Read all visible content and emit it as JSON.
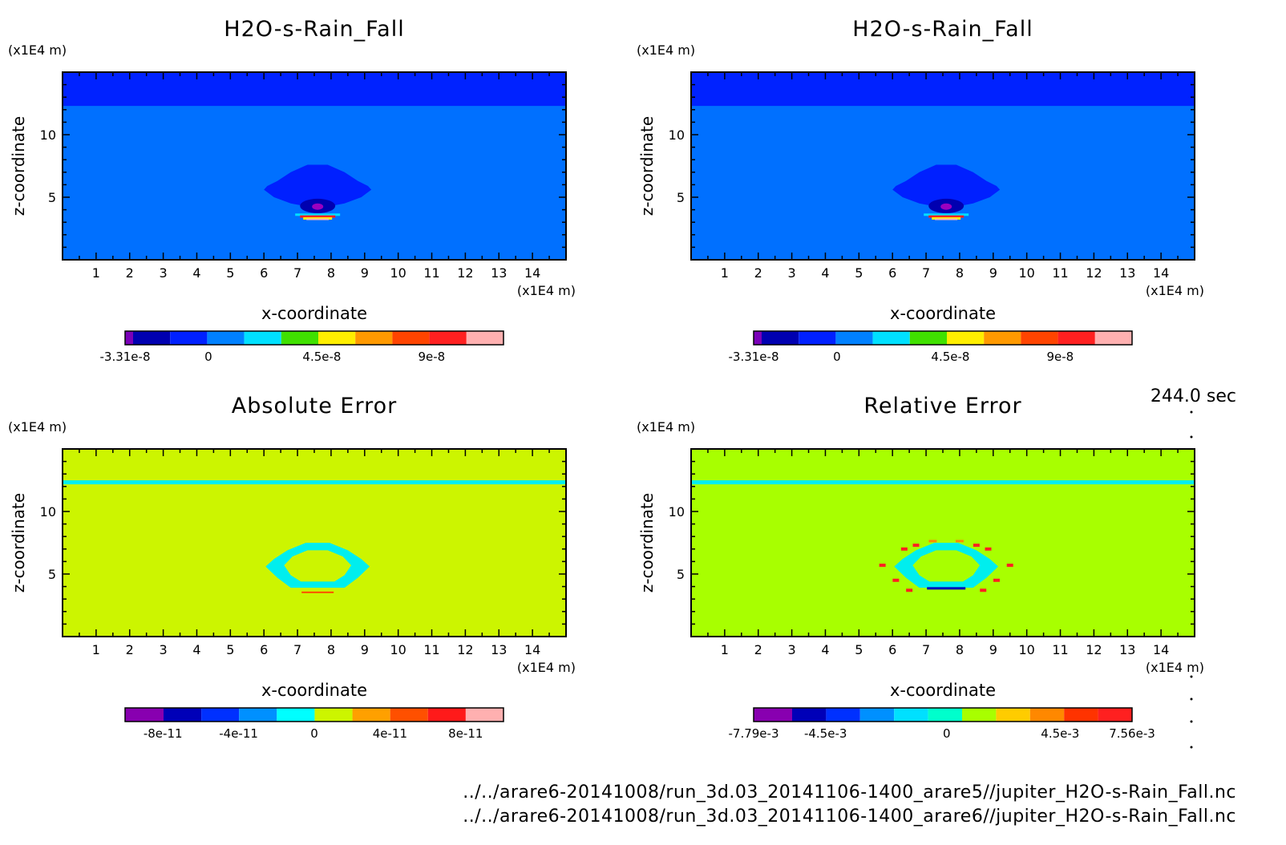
{
  "time_label": "244.0 sec",
  "files": [
    "../../arare6-20141008/run_3d.03_20141106-1400_arare5//jupiter_H2O-s-Rain_Fall.nc",
    "../../arare6-20141008/run_3d.03_20141106-1400_arare6//jupiter_H2O-s-Rain_Fall.nc"
  ],
  "chart_data": [
    {
      "type": "heatmap",
      "title": "H2O-s-Rain_Fall",
      "xlabel": "x-coordinate",
      "ylabel": "z-coordinate",
      "x_unit": "(x1E4 m)",
      "y_unit": "(x1E4 m)",
      "xlim": [
        0,
        15
      ],
      "ylim": [
        0,
        15
      ],
      "xticks": [
        "1",
        "2",
        "3",
        "4",
        "5",
        "6",
        "7",
        "8",
        "9",
        "10",
        "11",
        "12",
        "13",
        "14"
      ],
      "yticks": [
        "5",
        "10"
      ],
      "background_color": "#0070ff",
      "top_band_color": "#0022ff",
      "feature": "rain shaft near x=7.5, z=3-8",
      "colorbar": {
        "colors": [
          "#7a00b8",
          "#0000b0",
          "#0020ff",
          "#0080ff",
          "#00e0ff",
          "#40e000",
          "#ffee00",
          "#ff9900",
          "#ff4400",
          "#ff2020",
          "#ffb0b0"
        ],
        "labels": [
          "-3.31e-8",
          "0",
          "4.5e-8",
          "9e-8"
        ]
      }
    },
    {
      "type": "heatmap",
      "title": "H2O-s-Rain_Fall",
      "xlabel": "x-coordinate",
      "ylabel": "z-coordinate",
      "x_unit": "(x1E4 m)",
      "y_unit": "(x1E4 m)",
      "xlim": [
        0,
        15
      ],
      "ylim": [
        0,
        15
      ],
      "xticks": [
        "1",
        "2",
        "3",
        "4",
        "5",
        "6",
        "7",
        "8",
        "9",
        "10",
        "11",
        "12",
        "13",
        "14"
      ],
      "yticks": [
        "5",
        "10"
      ],
      "background_color": "#0070ff",
      "top_band_color": "#0022ff",
      "feature": "rain shaft near x=7.5, z=3-8",
      "colorbar": {
        "colors": [
          "#7a00b8",
          "#0000b0",
          "#0020ff",
          "#0080ff",
          "#00e0ff",
          "#40e000",
          "#ffee00",
          "#ff9900",
          "#ff4400",
          "#ff2020",
          "#ffb0b0"
        ],
        "labels": [
          "-3.31e-8",
          "0",
          "4.5e-8",
          "9e-8"
        ]
      }
    },
    {
      "type": "heatmap",
      "title": "Absolute Error",
      "xlabel": "x-coordinate",
      "ylabel": "z-coordinate",
      "x_unit": "(x1E4 m)",
      "y_unit": "(x1E4 m)",
      "xlim": [
        0,
        15
      ],
      "ylim": [
        0,
        15
      ],
      "xticks": [
        "1",
        "2",
        "3",
        "4",
        "5",
        "6",
        "7",
        "8",
        "9",
        "10",
        "11",
        "12",
        "13",
        "14"
      ],
      "yticks": [
        "5",
        "10"
      ],
      "background_color": "#ccf500",
      "line_color": "#00eeee",
      "feature": "error ring near x=7.5, z=4-7.5",
      "colorbar": {
        "colors": [
          "#8800b0",
          "#0000b8",
          "#0030ff",
          "#0090ff",
          "#00ffff",
          "#ccf500",
          "#ffa000",
          "#ff5000",
          "#ff1a1a",
          "#ffb0b0"
        ],
        "labels": [
          "-8e-11",
          "-4e-11",
          "0",
          "4e-11",
          "8e-11"
        ]
      }
    },
    {
      "type": "heatmap",
      "title": "Relative Error",
      "xlabel": "x-coordinate",
      "ylabel": "z-coordinate",
      "x_unit": "(x1E4 m)",
      "y_unit": "(x1E4 m)",
      "xlim": [
        0,
        15
      ],
      "ylim": [
        0,
        15
      ],
      "xticks": [
        "1",
        "2",
        "3",
        "4",
        "5",
        "6",
        "7",
        "8",
        "9",
        "10",
        "11",
        "12",
        "13",
        "14"
      ],
      "yticks": [
        "5",
        "10"
      ],
      "background_color": "#a8ff00",
      "line_color": "#00eeee",
      "feature": "relative error ring near x=7.5, z=4-7.5",
      "colorbar": {
        "colors": [
          "#8800b0",
          "#0000b8",
          "#0030ff",
          "#0090ff",
          "#00e0ff",
          "#00ffcc",
          "#a8ff00",
          "#ffcc00",
          "#ff8800",
          "#ff3300",
          "#ff2020"
        ],
        "labels": [
          "-7.79e-3",
          "-4.5e-3",
          "0",
          "4.5e-3",
          "7.56e-3"
        ]
      }
    }
  ]
}
